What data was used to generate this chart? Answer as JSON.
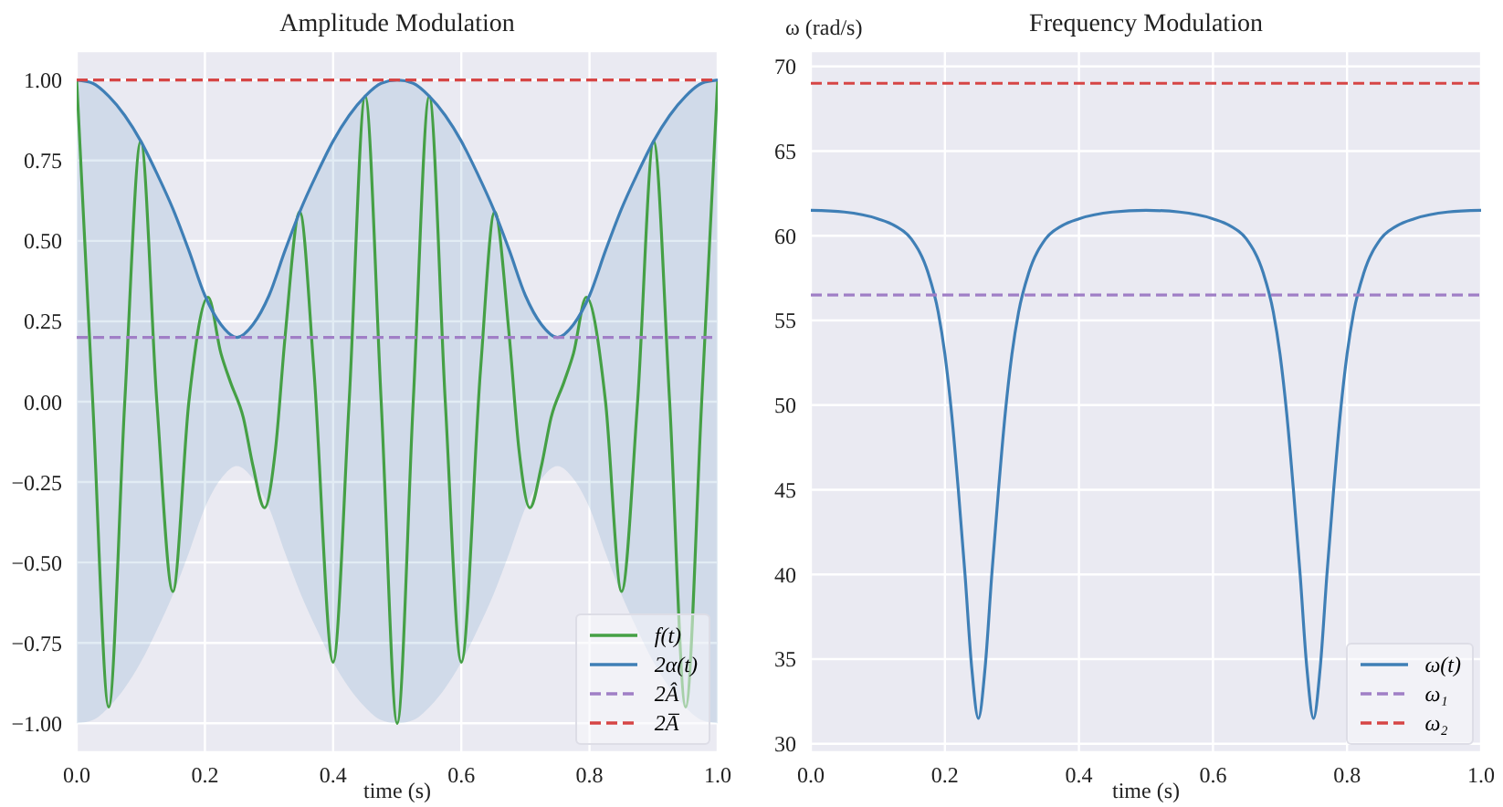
{
  "chart_data": [
    {
      "type": "line",
      "title": "Amplitude Modulation",
      "xlabel": "time (s)",
      "xlim": [
        0,
        1
      ],
      "xticks": [
        {
          "value": 0,
          "label": "0.0"
        },
        {
          "value": 0.2,
          "label": "0.2"
        },
        {
          "value": 0.4,
          "label": "0.4"
        },
        {
          "value": 0.6,
          "label": "0.6"
        },
        {
          "value": 0.8,
          "label": "0.8"
        },
        {
          "value": 1,
          "label": "1.0"
        }
      ],
      "ylim": [
        -1.09,
        1.09
      ],
      "yticks": [
        {
          "value": -1,
          "label": "−1.00"
        },
        {
          "value": -0.75,
          "label": "−0.75"
        },
        {
          "value": -0.5,
          "label": "−0.50"
        },
        {
          "value": -0.25,
          "label": "−0.25"
        },
        {
          "value": 0,
          "label": "0.00"
        },
        {
          "value": 0.25,
          "label": "0.25"
        },
        {
          "value": 0.5,
          "label": "0.50"
        },
        {
          "value": 0.75,
          "label": "0.75"
        },
        {
          "value": 1,
          "label": "1.00"
        }
      ],
      "grid": true,
      "legend": "bottom right",
      "series": [
        {
          "name": "f(t)",
          "color": "#45a045",
          "x": [
            0,
            0.025,
            0.05,
            0.075,
            0.1,
            0.125,
            0.15,
            0.175,
            0.205,
            0.225,
            0.24,
            0.26,
            0.275,
            0.293,
            0.31,
            0.325,
            0.348,
            0.37,
            0.4,
            0.425,
            0.45,
            0.475,
            0.5,
            0.525,
            0.55,
            0.575,
            0.6,
            0.63,
            0.652,
            0.675,
            0.69,
            0.707,
            0.725,
            0.74,
            0.76,
            0.775,
            0.795,
            0.825,
            0.85,
            0.875,
            0.9,
            0.925,
            0.95,
            0.975,
            1
          ],
          "values": [
            1,
            0,
            -0.95,
            0,
            0.81,
            0,
            -0.59,
            0,
            0.325,
            0.15,
            0.06,
            -0.05,
            -0.2,
            -0.33,
            -0.15,
            0.2,
            0.59,
            0.1,
            -0.81,
            0,
            0.95,
            0,
            -1,
            0,
            0.95,
            0,
            -0.81,
            0.1,
            0.59,
            0.2,
            -0.15,
            -0.33,
            -0.2,
            -0.05,
            0.06,
            0.15,
            0.325,
            0,
            -0.59,
            0,
            0.81,
            0,
            -0.95,
            0,
            1
          ]
        },
        {
          "name": "2α(t)",
          "color": "#3f7fb6",
          "x": [
            0,
            0.025,
            0.05,
            0.075,
            0.1,
            0.125,
            0.15,
            0.175,
            0.2,
            0.225,
            0.25,
            0.275,
            0.3,
            0.325,
            0.35,
            0.375,
            0.4,
            0.425,
            0.45,
            0.475,
            0.5,
            0.525,
            0.55,
            0.575,
            0.6,
            0.625,
            0.65,
            0.675,
            0.7,
            0.725,
            0.75,
            0.775,
            0.8,
            0.825,
            0.85,
            0.875,
            0.9,
            0.925,
            0.95,
            0.975,
            1
          ],
          "values": [
            1,
            0.99,
            0.95,
            0.89,
            0.81,
            0.71,
            0.6,
            0.47,
            0.33,
            0.24,
            0.2,
            0.24,
            0.33,
            0.47,
            0.6,
            0.71,
            0.81,
            0.89,
            0.95,
            0.99,
            1,
            0.99,
            0.95,
            0.89,
            0.81,
            0.71,
            0.6,
            0.47,
            0.33,
            0.24,
            0.2,
            0.24,
            0.33,
            0.47,
            0.6,
            0.71,
            0.81,
            0.89,
            0.95,
            0.99,
            1
          ],
          "upper": [
            1,
            0.99,
            0.95,
            0.89,
            0.81,
            0.71,
            0.6,
            0.47,
            0.33,
            0.24,
            0.2,
            0.24,
            0.33,
            0.47,
            0.6,
            0.71,
            0.81,
            0.89,
            0.95,
            0.99,
            1,
            0.99,
            0.95,
            0.89,
            0.81,
            0.71,
            0.6,
            0.47,
            0.33,
            0.24,
            0.2,
            0.24,
            0.33,
            0.47,
            0.6,
            0.71,
            0.81,
            0.89,
            0.95,
            0.99,
            1
          ],
          "lower": [
            -1,
            -0.99,
            -0.95,
            -0.89,
            -0.81,
            -0.71,
            -0.6,
            -0.47,
            -0.33,
            -0.24,
            -0.2,
            -0.24,
            -0.33,
            -0.47,
            -0.6,
            -0.71,
            -0.81,
            -0.89,
            -0.95,
            -0.99,
            -1,
            -0.99,
            -0.95,
            -0.89,
            -0.81,
            -0.71,
            -0.6,
            -0.47,
            -0.33,
            -0.24,
            -0.2,
            -0.24,
            -0.33,
            -0.47,
            -0.6,
            -0.71,
            -0.81,
            -0.89,
            -0.95,
            -0.99,
            -1
          ]
        }
      ],
      "ref_lines": [
        {
          "axis": "y",
          "value": 0.2,
          "label": "2Â",
          "color": "#a07fc6",
          "line_style": "dashed"
        },
        {
          "axis": "y",
          "value": 1,
          "label": "2A̅",
          "color": "#d64545",
          "line_style": "dashed"
        }
      ]
    },
    {
      "type": "line",
      "title": "Frequency Modulation",
      "xlabel": "time (s)",
      "ylabel": "ω (rad/s)",
      "xlim": [
        0,
        1
      ],
      "xticks": [
        {
          "value": 0,
          "label": "0.0"
        },
        {
          "value": 0.2,
          "label": "0.2"
        },
        {
          "value": 0.4,
          "label": "0.4"
        },
        {
          "value": 0.6,
          "label": "0.6"
        },
        {
          "value": 0.8,
          "label": "0.8"
        },
        {
          "value": 1,
          "label": "1.0"
        }
      ],
      "ylim": [
        29.5,
        70.9
      ],
      "yticks": [
        30,
        35,
        40,
        45,
        50,
        55,
        60,
        65,
        70
      ],
      "grid": true,
      "legend": "bottom right",
      "series": [
        {
          "name": "ω(t)",
          "color": "#3f7fb6",
          "x": [
            0,
            0.05,
            0.1,
            0.125,
            0.15,
            0.175,
            0.19,
            0.2,
            0.21,
            0.22,
            0.23,
            0.24,
            0.25,
            0.26,
            0.27,
            0.28,
            0.29,
            0.3,
            0.31,
            0.325,
            0.35,
            0.375,
            0.4,
            0.45,
            0.5,
            0.55,
            0.6,
            0.625,
            0.65,
            0.675,
            0.69,
            0.7,
            0.71,
            0.72,
            0.73,
            0.74,
            0.75,
            0.76,
            0.77,
            0.78,
            0.79,
            0.8,
            0.81,
            0.825,
            0.85,
            0.875,
            0.9,
            0.95,
            1
          ],
          "values": [
            61.5,
            61.4,
            61,
            60.6,
            59.8,
            57.8,
            55.5,
            53,
            49.5,
            45,
            40,
            34.5,
            31.5,
            34.5,
            40,
            45,
            49.5,
            53,
            55.5,
            57.8,
            59.8,
            60.6,
            61,
            61.4,
            61.5,
            61.4,
            61,
            60.6,
            59.8,
            57.8,
            55.5,
            53,
            49.5,
            45,
            40,
            34.5,
            31.5,
            34.5,
            40,
            45,
            49.5,
            53,
            55.5,
            57.8,
            59.8,
            60.6,
            61,
            61.4,
            61.5
          ]
        }
      ],
      "ref_lines": [
        {
          "axis": "y",
          "value": 56.5,
          "label": "ω₁",
          "color": "#a07fc6",
          "line_style": "dashed"
        },
        {
          "axis": "y",
          "value": 69,
          "label": "ω₂",
          "color": "#d64545",
          "line_style": "dashed"
        }
      ]
    }
  ]
}
